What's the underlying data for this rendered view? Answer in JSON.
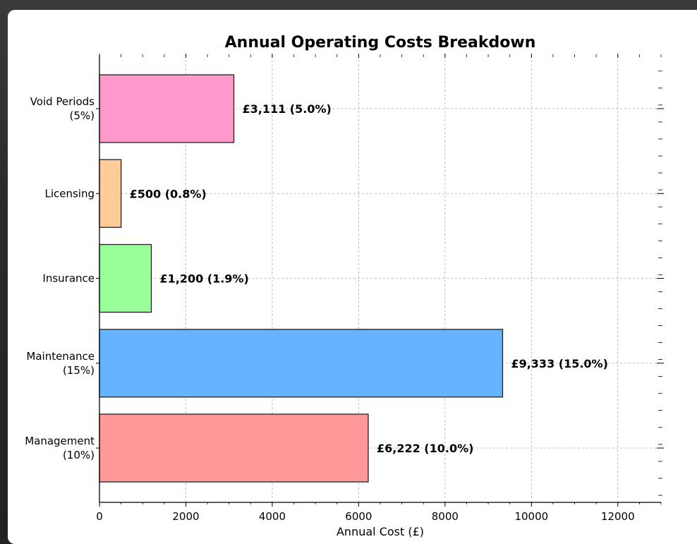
{
  "chart_data": {
    "type": "bar",
    "orientation": "horizontal",
    "title": "Annual Operating Costs Breakdown",
    "xlabel": "Annual Cost (£)",
    "ylabel": "",
    "xlim": [
      0,
      13000
    ],
    "x_ticks": [
      0,
      2000,
      4000,
      6000,
      8000,
      10000,
      12000
    ],
    "x_tick_labels": [
      "0",
      "2000",
      "4000",
      "6000",
      "8000",
      "10000",
      "12000"
    ],
    "grid": true,
    "categories": [
      "Management\n(10%)",
      "Maintenance\n(15%)",
      "Insurance",
      "Licensing",
      "Void Periods\n(5%)"
    ],
    "values": [
      6222,
      9333,
      1200,
      500,
      3111
    ],
    "data_labels": [
      "£6,222 (10.0%)",
      "£9,333 (15.0%)",
      "£1,200 (1.9%)",
      "£500 (0.8%)",
      "£3,111 (5.0%)"
    ],
    "colors": [
      "#ff9999",
      "#66b3ff",
      "#99ff99",
      "#ffcc99",
      "#ff99cc"
    ]
  }
}
